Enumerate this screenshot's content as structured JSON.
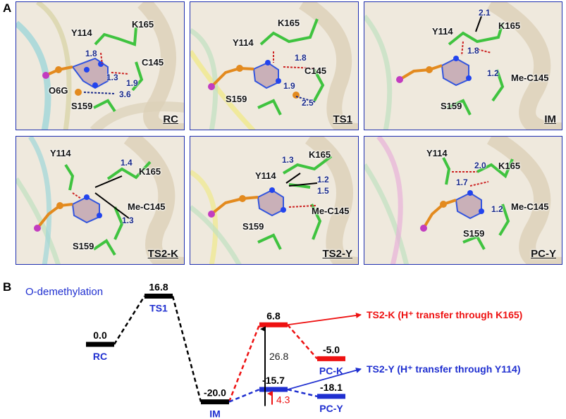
{
  "section_a": "A",
  "section_b": "B",
  "panels": [
    {
      "name": "RC",
      "residues": {
        "y114": "Y114",
        "k165": "K165",
        "c145": "C145",
        "o6g": "O6G",
        "s159": "S159"
      },
      "distances": [
        "1.8",
        "1.9",
        "1.3",
        "3.6"
      ]
    },
    {
      "name": "TS1",
      "residues": {
        "k165": "K165",
        "y114": "Y114",
        "c145": "C145",
        "s159": "S159"
      },
      "distances": [
        "1.8",
        "1.9",
        "2.5"
      ]
    },
    {
      "name": "IM",
      "residues": {
        "y114": "Y114",
        "k165": "K165",
        "mec145": "Me-C145",
        "s159": "S159"
      },
      "distances": [
        "2.1",
        "1.8",
        "1.2"
      ]
    },
    {
      "name": "TS2-K",
      "residues": {
        "y114": "Y114",
        "k165": "K165",
        "mec145": "Me-C145",
        "s159": "S159"
      },
      "distances": [
        "1.4",
        "1.3"
      ]
    },
    {
      "name": "TS2-Y",
      "residues": {
        "k165": "K165",
        "y114": "Y114",
        "mec145": "Me-C145",
        "s159": "S159"
      },
      "distances": [
        "1.3",
        "1.2",
        "1.5"
      ]
    },
    {
      "name": "PC-Y",
      "residues": {
        "y114": "Y114",
        "k165": "K165",
        "mec145": "Me-C145",
        "s159": "S159"
      },
      "distances": [
        "2.0",
        "1.7",
        "1.2"
      ]
    }
  ],
  "energy": {
    "reaction_label": "O-demethylation",
    "states": [
      {
        "id": "RC",
        "label": "RC",
        "energy": 0.0,
        "energy_label": "0.0",
        "color": "#000000",
        "label_color": "#1f2fd0"
      },
      {
        "id": "TS1",
        "label": "TS1",
        "energy": 16.8,
        "energy_label": "16.8",
        "color": "#000000",
        "label_color": "#1f2fd0"
      },
      {
        "id": "IM",
        "label": "IM",
        "energy": -20.0,
        "energy_label": "-20.0",
        "color": "#000000",
        "label_color": "#1f2fd0"
      },
      {
        "id": "TS2K",
        "label": "",
        "energy": 6.8,
        "energy_label": "6.8",
        "color": "#ee1111",
        "label_color": "#ee1111"
      },
      {
        "id": "TS2Y",
        "label": "",
        "energy": -15.7,
        "energy_label": "-15.7",
        "color": "#1f2fd0",
        "label_color": "#1f2fd0"
      },
      {
        "id": "PCK",
        "label": "PC-K",
        "energy": -5.0,
        "energy_label": "-5.0",
        "color": "#ee1111",
        "label_color": "#1f2fd0"
      },
      {
        "id": "PCY",
        "label": "PC-Y",
        "energy": -18.1,
        "energy_label": "-18.1",
        "color": "#1f2fd0",
        "label_color": "#1f2fd0"
      }
    ],
    "barrier_k": "26.8",
    "barrier_y": "4.3",
    "legend_k": "TS2-K (H⁺ transfer through K165)",
    "legend_y": "TS2-Y (H⁺ transfer through Y114)",
    "color_k": "#ee1111",
    "color_y": "#1f2fd0"
  }
}
